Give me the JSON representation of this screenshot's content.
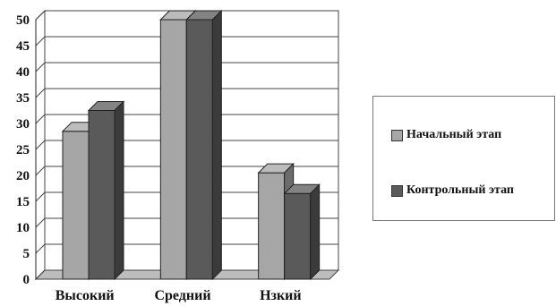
{
  "chart_data": {
    "type": "bar",
    "categories": [
      "Высокий",
      "Средний",
      "Нзкий"
    ],
    "series": [
      {
        "name": "Начальный этап",
        "values": [
          28.5,
          50,
          20.5
        ],
        "color": "#a6a6a6"
      },
      {
        "name": "Контрольный этап",
        "values": [
          32.5,
          50,
          16.5
        ],
        "color": "#5a5a5a"
      }
    ],
    "ylim": [
      0,
      50
    ],
    "yticks": [
      "0",
      "5",
      "10",
      "15",
      "20",
      "25",
      "30",
      "35",
      "40",
      "45",
      "50"
    ],
    "grid": true,
    "style": "3d-clustered-column",
    "legend": "right"
  }
}
